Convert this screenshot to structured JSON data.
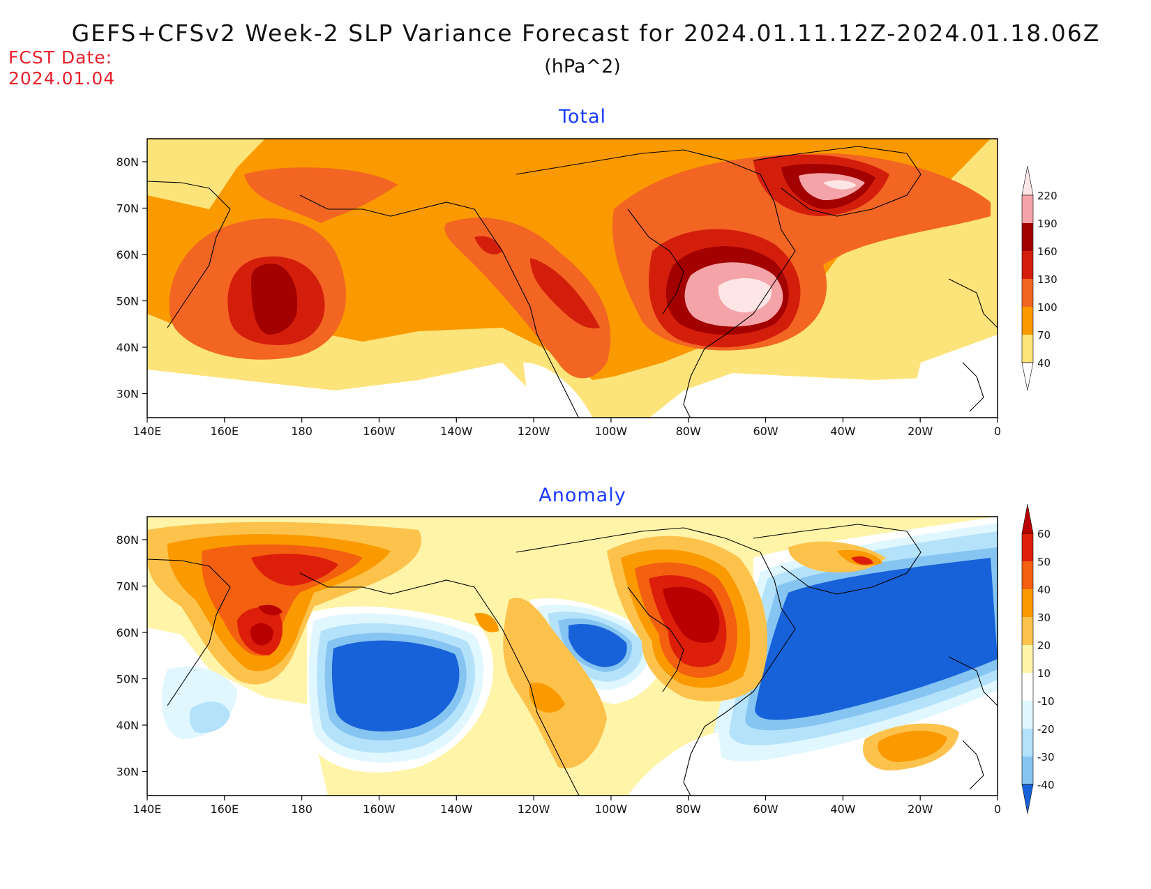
{
  "title": "GEFS+CFSv2 Week-2 SLP Variance Forecast for 2024.01.11.12Z-2024.01.18.06Z",
  "units": "(hPa^2)",
  "fcst_label": "FCST Date:",
  "fcst_date": "2024.01.04",
  "panels": [
    {
      "title": "Total",
      "x_ticks": [
        "140E",
        "160E",
        "180",
        "160W",
        "140W",
        "120W",
        "100W",
        "80W",
        "60W",
        "40W",
        "20W",
        "0"
      ],
      "y_ticks": [
        "80N",
        "70N",
        "60N",
        "50N",
        "40N",
        "30N"
      ],
      "colorbar": {
        "labels": [
          "220",
          "190",
          "160",
          "130",
          "100",
          "70",
          "40"
        ],
        "colors": [
          "#ffe6e6",
          "#f4a4a8",
          "#a30000",
          "#d41e0c",
          "#f26522",
          "#fa9a00",
          "#fde47a"
        ]
      }
    },
    {
      "title": "Anomaly",
      "x_ticks": [
        "140E",
        "160E",
        "180",
        "160W",
        "140W",
        "120W",
        "100W",
        "80W",
        "60W",
        "40W",
        "20W",
        "0"
      ],
      "y_ticks": [
        "80N",
        "70N",
        "60N",
        "50N",
        "40N",
        "30N"
      ],
      "colorbar": {
        "labels": [
          "60",
          "50",
          "40",
          "30",
          "20",
          "10",
          "-10",
          "-20",
          "-30",
          "-40"
        ],
        "colors": [
          "#b80000",
          "#dc1e0a",
          "#f26010",
          "#fa9a00",
          "#fcc24c",
          "#fff4a8",
          "#ffffff",
          "#e0f7ff",
          "#b5e2fb",
          "#86c4f2",
          "#4a96e6",
          "#1762d8"
        ]
      }
    }
  ]
}
